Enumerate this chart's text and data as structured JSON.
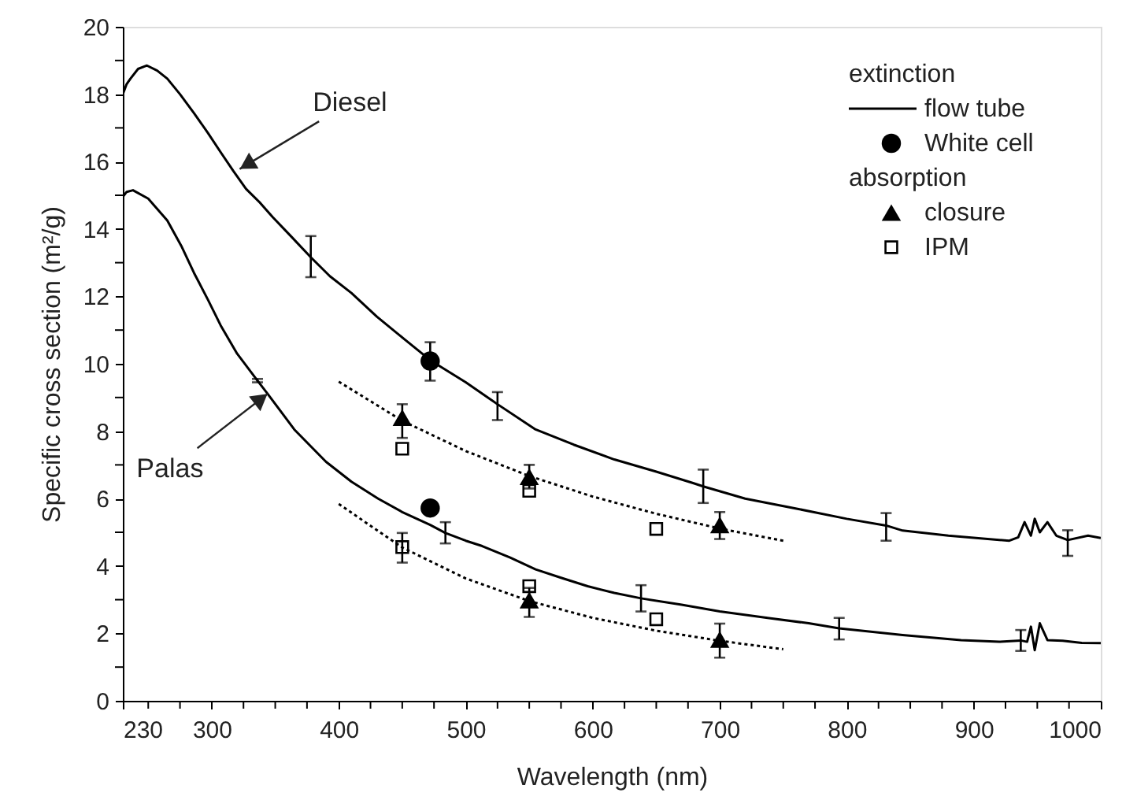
{
  "chart_data": {
    "type": "line",
    "xlabel": "Wavelength (nm)",
    "ylabel": "Specific cross section (m²/g)",
    "xlim": [
      230,
      1000
    ],
    "ylim": [
      0,
      20
    ],
    "xticks": [
      230,
      {
        "value": 250,
        "label": null
      },
      {
        "value": 275,
        "label": null
      },
      300,
      {
        "value": 325,
        "label": null
      },
      {
        "value": 350,
        "label": null
      },
      {
        "value": 375,
        "label": null
      },
      400,
      {
        "value": 425,
        "label": null
      },
      {
        "value": 450,
        "label": null
      },
      {
        "value": 475,
        "label": null
      },
      500,
      {
        "value": 525,
        "label": null
      },
      {
        "value": 550,
        "label": null
      },
      {
        "value": 575,
        "label": null
      },
      600,
      {
        "value": 625,
        "label": null
      },
      {
        "value": 650,
        "label": null
      },
      {
        "value": 675,
        "label": null
      },
      700,
      {
        "value": 725,
        "label": null
      },
      {
        "value": 750,
        "label": null
      },
      {
        "value": 775,
        "label": null
      },
      800,
      {
        "value": 825,
        "label": null
      },
      {
        "value": 850,
        "label": null
      },
      {
        "value": 875,
        "label": null
      },
      900,
      {
        "value": 925,
        "label": null
      },
      {
        "value": 950,
        "label": null
      },
      {
        "value": 975,
        "label": null
      },
      1000
    ],
    "yticks": [
      0,
      {
        "value": 1,
        "label": null
      },
      2,
      {
        "value": 3,
        "label": null
      },
      4,
      {
        "value": 5,
        "label": null
      },
      6,
      {
        "value": 7,
        "label": null
      },
      8,
      {
        "value": 9,
        "label": null
      },
      10,
      {
        "value": 11,
        "label": null
      },
      12,
      {
        "value": 13,
        "label": null
      },
      14,
      {
        "value": 15,
        "label": null
      },
      16,
      {
        "value": 17,
        "label": null
      },
      18,
      {
        "value": 19,
        "label": null
      },
      20
    ],
    "grid": false,
    "legend": "top right",
    "annotations": [
      "extinction",
      "absorption",
      {
        "text": "Diesel",
        "x": 322,
        "y": 15.78
      },
      {
        "text": "Palas",
        "x": 344,
        "y": 9.11
      }
    ],
    "series": [
      {
        "name": "flow tube",
        "color": "#000000",
        "line_style": "solid",
        "x": [
          230,
          233,
          236,
          242,
          249,
          257,
          265,
          275,
          286,
          297,
          307,
          317,
          327,
          338,
          348,
          362,
          378,
          393,
          410,
          430,
          451,
          473,
          500,
          525,
          555,
          585,
          617,
          650,
          679,
          687,
          720,
          762,
          800,
          831,
          844,
          880,
          928,
          935,
          940,
          945,
          948,
          952,
          958,
          965,
          974,
          990,
          1000
        ],
        "values": [
          18.0,
          18.3,
          18.46,
          18.75,
          18.85,
          18.7,
          18.46,
          18.0,
          17.44,
          16.85,
          16.28,
          15.72,
          15.19,
          14.78,
          14.35,
          13.8,
          13.16,
          12.6,
          12.1,
          11.4,
          10.75,
          10.08,
          9.45,
          8.8,
          8.05,
          7.6,
          7.16,
          6.8,
          6.46,
          6.36,
          6.0,
          5.69,
          5.4,
          5.2,
          5.05,
          4.9,
          4.75,
          4.85,
          5.3,
          4.9,
          5.4,
          5.0,
          5.3,
          4.9,
          4.77,
          4.9,
          4.83
        ],
        "errors": [
          null,
          null,
          null,
          null,
          null,
          null,
          null,
          null,
          null,
          null,
          null,
          null,
          null,
          null,
          null,
          null,
          [
            12.57,
            13.79
          ],
          null,
          null,
          null,
          null,
          null,
          null,
          [
            8.33,
            9.16
          ],
          null,
          null,
          null,
          null,
          null,
          [
            5.87,
            6.86
          ],
          null,
          null,
          null,
          [
            4.75,
            5.57
          ],
          null,
          null,
          null,
          null,
          null,
          null,
          null,
          null,
          null,
          null,
          [
            4.3,
            5.06
          ],
          null,
          null
        ]
      },
      {
        "color": "#000000",
        "line_style": "solid",
        "x": [
          230,
          233,
          238,
          250,
          265,
          276,
          286,
          297,
          307,
          320,
          336,
          344,
          365,
          390,
          410,
          431,
          450,
          472,
          484,
          500,
          513,
          535,
          555,
          575,
          596,
          617,
          638,
          670,
          700,
          740,
          770,
          794,
          844,
          890,
          920,
          937,
          942,
          945,
          948,
          952,
          958,
          970,
          985,
          1000
        ],
        "values": [
          14.95,
          15.1,
          15.15,
          14.9,
          14.25,
          13.5,
          12.7,
          11.9,
          11.14,
          10.3,
          9.5,
          9.11,
          8.05,
          7.09,
          6.5,
          6.0,
          5.6,
          5.22,
          4.98,
          4.75,
          4.59,
          4.25,
          3.9,
          3.65,
          3.4,
          3.2,
          3.04,
          2.85,
          2.65,
          2.45,
          2.3,
          2.15,
          1.95,
          1.8,
          1.75,
          1.79,
          1.75,
          2.2,
          1.5,
          2.3,
          1.8,
          1.78,
          1.72,
          1.71
        ],
        "errors": [
          null,
          null,
          null,
          null,
          null,
          null,
          null,
          null,
          null,
          null,
          [
            9.45,
            9.55
          ],
          null,
          null,
          null,
          null,
          null,
          null,
          null,
          [
            4.67,
            5.3
          ],
          null,
          null,
          null,
          null,
          null,
          null,
          null,
          [
            2.65,
            3.43
          ],
          null,
          null,
          null,
          null,
          [
            1.82,
            2.46
          ],
          null,
          null,
          null,
          [
            1.48,
            2.1
          ],
          null,
          null,
          null,
          null,
          null,
          null,
          null,
          null
        ]
      },
      {
        "name": "White cell",
        "type": "scatter",
        "color": "#000000",
        "marker": "circle",
        "x": [
          472,
          472
        ],
        "values": [
          10.08,
          5.72
        ],
        "errors": [
          [
            9.5,
            10.64
          ],
          null
        ]
      },
      {
        "name": "closure",
        "type": "scatter",
        "color": "#000000",
        "marker": "triangle",
        "x": [
          450,
          550,
          700,
          550,
          700
        ],
        "values": [
          8.4,
          6.65,
          5.22,
          2.99,
          1.82
        ],
        "errors": [
          [
            7.8,
            8.8
          ],
          [
            6.3,
            7.0
          ],
          [
            4.8,
            5.6
          ],
          [
            2.49,
            3.35
          ],
          [
            1.28,
            2.29
          ]
        ]
      },
      {
        "name": "IPM",
        "type": "scatter",
        "color": "#000000",
        "marker": "square",
        "x": [
          450,
          550,
          650,
          450,
          550,
          650
        ],
        "values": [
          7.48,
          6.23,
          5.1,
          4.56,
          3.4,
          2.42
        ],
        "errors": [
          null,
          null,
          null,
          [
            4.1,
            4.98
          ],
          null,
          null
        ]
      },
      {
        "type": "line",
        "color": "#000000",
        "line_style": "dotted",
        "x": [
          400,
          450,
          500,
          550,
          600,
          650,
          700,
          750
        ],
        "values": [
          9.47,
          8.31,
          7.41,
          6.67,
          6.06,
          5.55,
          5.11,
          4.75
        ]
      },
      {
        "type": "line",
        "color": "#000000",
        "line_style": "dotted",
        "x": [
          400,
          450,
          500,
          550,
          600,
          650,
          700,
          750
        ],
        "values": [
          5.84,
          4.55,
          3.63,
          2.96,
          2.46,
          2.08,
          1.78,
          1.53
        ]
      }
    ]
  }
}
